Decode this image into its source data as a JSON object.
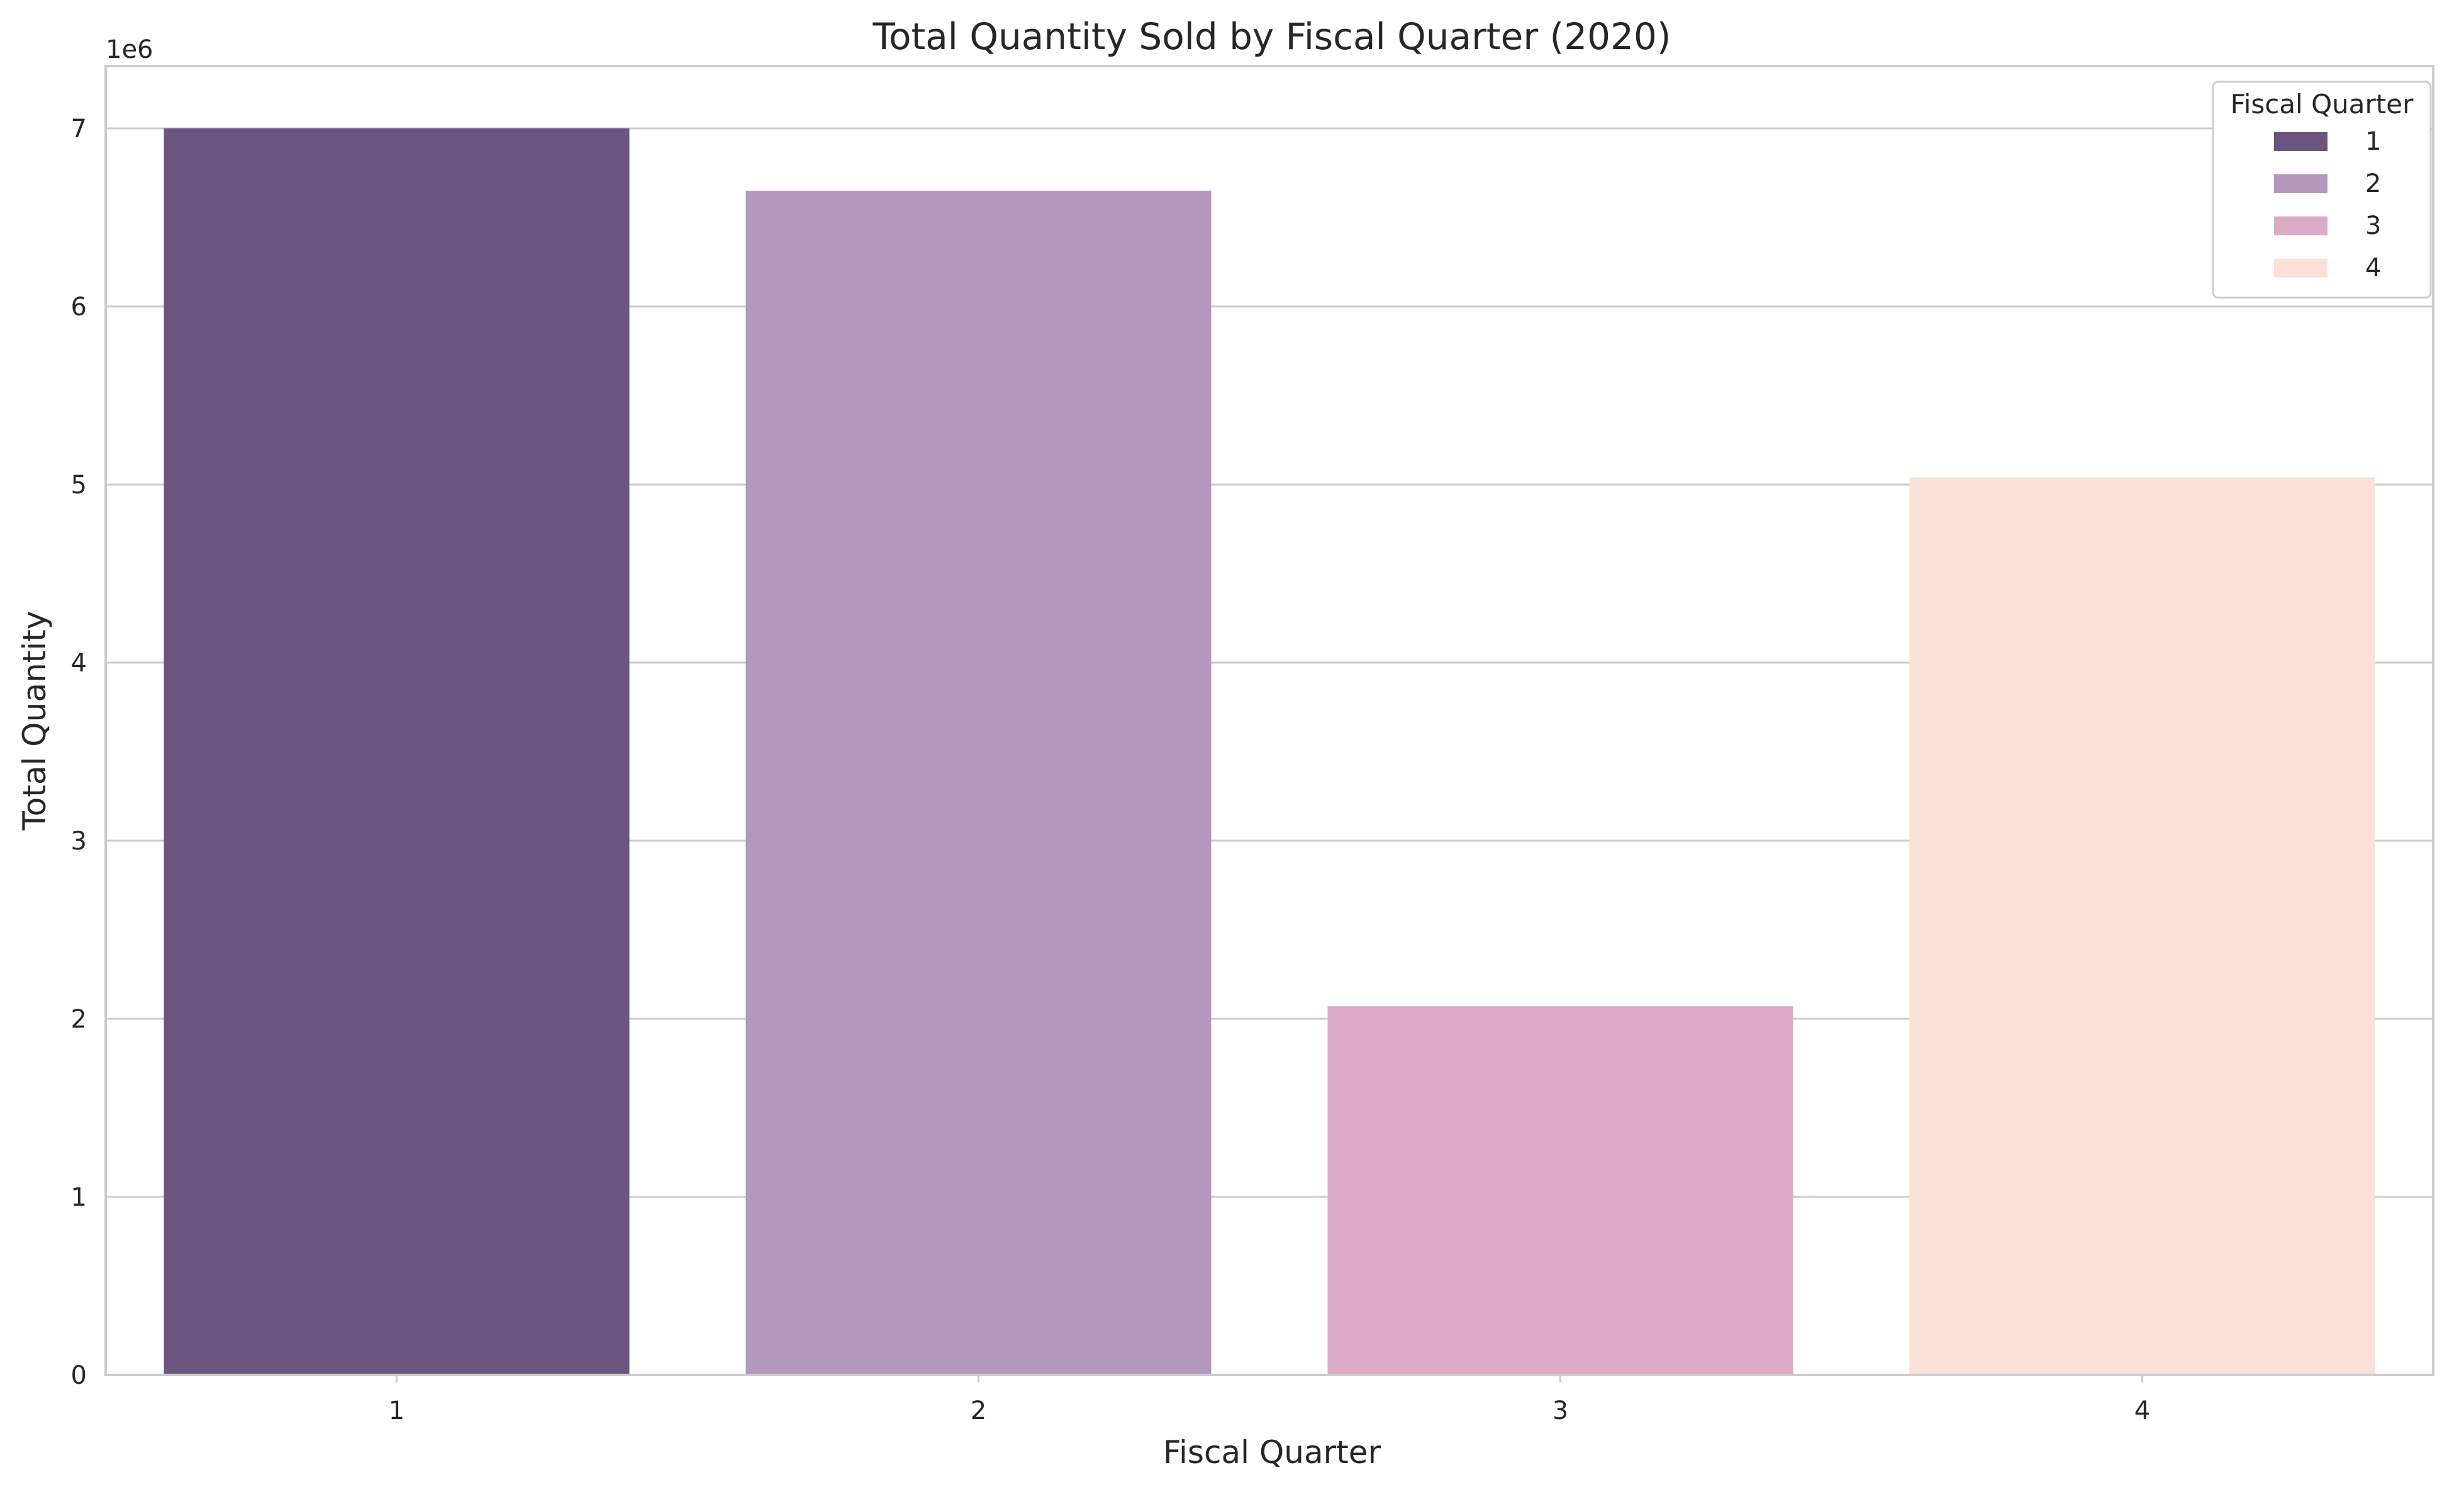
{
  "chart_data": {
    "type": "bar",
    "title": "Total Quantity Sold by Fiscal Quarter (2020)",
    "xlabel": "Fiscal Quarter",
    "ylabel": "Total Quantity",
    "y_offset_label": "1e6",
    "categories": [
      "1",
      "2",
      "3",
      "4"
    ],
    "values": [
      7000000,
      6650000,
      2070000,
      5040000
    ],
    "ylim": [
      0,
      7350000
    ],
    "yticks": [
      0,
      1000000,
      2000000,
      3000000,
      4000000,
      5000000,
      6000000,
      7000000
    ],
    "ytick_labels": [
      "0",
      "1",
      "2",
      "3",
      "4",
      "5",
      "6",
      "7"
    ],
    "grid": true,
    "colors": [
      "#69557f",
      "#b397bd",
      "#dbaac6",
      "#fbe0d8"
    ],
    "legend": {
      "title": "Fiscal Quarter",
      "placement": "top-right",
      "entries": [
        "1",
        "2",
        "3",
        "4"
      ]
    }
  }
}
